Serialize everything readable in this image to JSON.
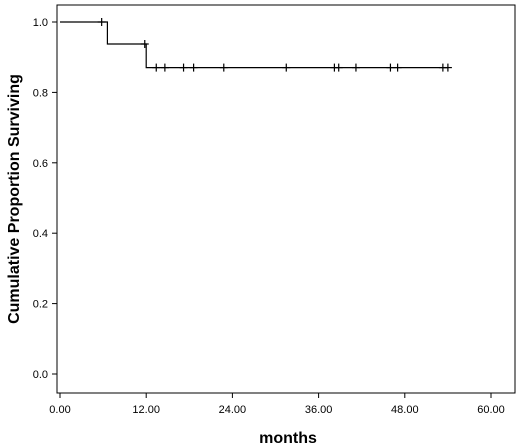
{
  "chart_data": {
    "type": "line",
    "title": "",
    "xlabel": "months",
    "ylabel": "Cumulative Proportion Surviving",
    "xlim": [
      0,
      60
    ],
    "ylim": [
      0,
      1.0
    ],
    "x_ticks": [
      "0.00",
      "12.00",
      "24.00",
      "36.00",
      "48.00",
      "60.00"
    ],
    "y_ticks": [
      "0.0",
      "0.2",
      "0.4",
      "0.6",
      "0.8",
      "1.0"
    ],
    "grid": false,
    "legend": "none",
    "series": [
      {
        "style": "step",
        "color": "#000000",
        "x": [
          0,
          6.6,
          6.6,
          12.0,
          12.0,
          54.0
        ],
        "y": [
          1.0,
          1.0,
          0.9375,
          0.9375,
          0.8705,
          0.8705
        ]
      }
    ],
    "censored": {
      "x": [
        5.8,
        11.8,
        13.4,
        14.6,
        17.2,
        18.6,
        22.8,
        31.5,
        38.2,
        38.8,
        41.2,
        46.0,
        47.0,
        53.3,
        54.0
      ],
      "y": [
        1.0,
        0.9375,
        0.8705,
        0.8705,
        0.8705,
        0.8705,
        0.8705,
        0.8705,
        0.8705,
        0.8705,
        0.8705,
        0.8705,
        0.8705,
        0.8705,
        0.8705
      ]
    }
  }
}
